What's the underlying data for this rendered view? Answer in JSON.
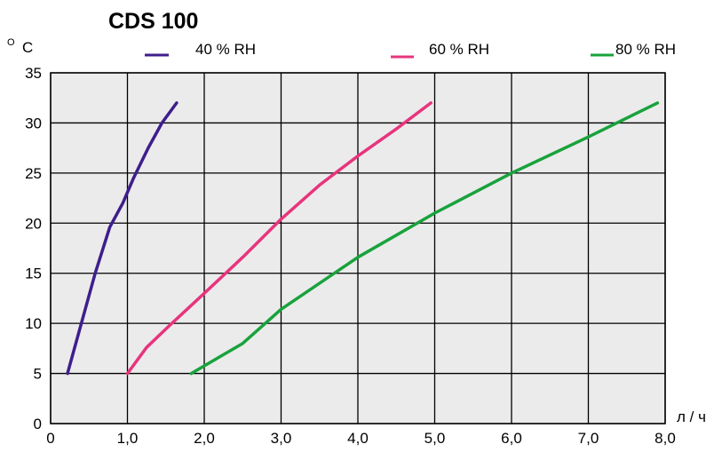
{
  "chart_data": {
    "type": "line",
    "title": "CDS 100",
    "ylabel": "C",
    "ylabel_prefix": "O",
    "xlabel": "л / ч",
    "xlim": [
      0,
      8
    ],
    "ylim": [
      0,
      35
    ],
    "x_ticks": [
      0,
      1,
      2,
      3,
      4,
      5,
      6,
      7,
      8
    ],
    "x_tick_labels": [
      "0",
      "1,0",
      "2,0",
      "3,0",
      "4,0",
      "5,0",
      "6,0",
      "7,0",
      "8,0"
    ],
    "y_ticks": [
      0,
      5,
      10,
      15,
      20,
      25,
      30,
      35
    ],
    "y_tick_labels": [
      "0",
      "5",
      "10",
      "15",
      "20",
      "25",
      "30",
      "35"
    ],
    "grid": true,
    "legend_position": "top",
    "background_color": "#ebebeb",
    "series": [
      {
        "name": "40 % RH",
        "color": "#3e1e8c",
        "points": [
          [
            0.22,
            5
          ],
          [
            0.4,
            10
          ],
          [
            0.58,
            15
          ],
          [
            0.77,
            19.6
          ],
          [
            0.94,
            22
          ],
          [
            1.08,
            24.5
          ],
          [
            1.27,
            27.5
          ],
          [
            1.45,
            30
          ],
          [
            1.64,
            32
          ]
        ]
      },
      {
        "name": "60 % RH",
        "color": "#e8347d",
        "points": [
          [
            1.0,
            5
          ],
          [
            1.25,
            7.6
          ],
          [
            1.55,
            9.8
          ],
          [
            2.0,
            13
          ],
          [
            2.5,
            16.6
          ],
          [
            3.0,
            20.4
          ],
          [
            3.5,
            23.8
          ],
          [
            4.0,
            26.7
          ],
          [
            4.5,
            29.4
          ],
          [
            4.95,
            32
          ]
        ]
      },
      {
        "name": "80 % RH",
        "color": "#19a23c",
        "points": [
          [
            1.83,
            5
          ],
          [
            2.5,
            8
          ],
          [
            3.0,
            11.4
          ],
          [
            4.0,
            16.6
          ],
          [
            5.0,
            21
          ],
          [
            6.0,
            25
          ],
          [
            7.0,
            28.6
          ],
          [
            7.9,
            32
          ]
        ]
      }
    ]
  }
}
